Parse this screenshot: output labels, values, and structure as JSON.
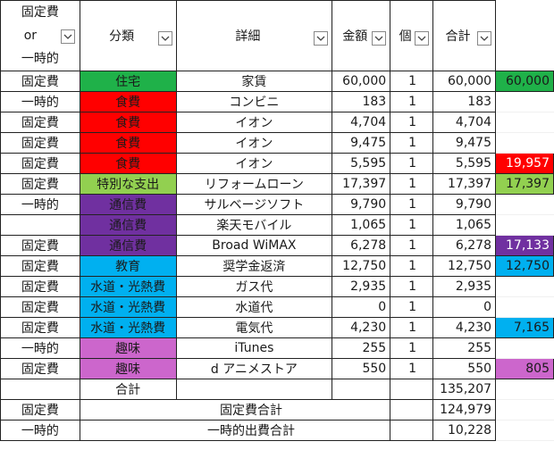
{
  "headers": {
    "type_top": "固定費",
    "type_mid": "or",
    "type_bot": "一時的",
    "category": "分類",
    "detail": "詳細",
    "amount": "金額",
    "qty": "個",
    "total": "合計"
  },
  "colors": {
    "housing": "#1fb149",
    "food": "#ff0000",
    "special": "#92d050",
    "telecom": "#7030a0",
    "education": "#00b0f0",
    "utilities": "#00b0f0",
    "hobby": "#cc66cc"
  },
  "rows": [
    {
      "type": "固定費",
      "category": "住宅",
      "cat_color": "#1fb149",
      "detail": "家賃",
      "amount": "60,000",
      "qty": "1",
      "total": "60,000",
      "side": "60,000",
      "side_color": "#1fb149"
    },
    {
      "type": "一時的",
      "category": "食費",
      "cat_color": "#ff0000",
      "detail": "コンビニ",
      "amount": "183",
      "qty": "1",
      "total": "183",
      "side": "",
      "side_color": ""
    },
    {
      "type": "固定費",
      "category": "食費",
      "cat_color": "#ff0000",
      "detail": "イオン",
      "amount": "4,704",
      "qty": "1",
      "total": "4,704",
      "side": "",
      "side_color": ""
    },
    {
      "type": "固定費",
      "category": "食費",
      "cat_color": "#ff0000",
      "detail": "イオン",
      "amount": "9,475",
      "qty": "1",
      "total": "9,475",
      "side": "",
      "side_color": ""
    },
    {
      "type": "固定費",
      "category": "食費",
      "cat_color": "#ff0000",
      "detail": "イオン",
      "amount": "5,595",
      "qty": "1",
      "total": "5,595",
      "side": "19,957",
      "side_color": "#ff0000"
    },
    {
      "type": "固定費",
      "category": "特別な支出",
      "cat_color": "#92d050",
      "detail": "リフォームローン",
      "amount": "17,397",
      "qty": "1",
      "total": "17,397",
      "side": "17,397",
      "side_color": "#92d050"
    },
    {
      "type": "一時的",
      "category": "通信費",
      "cat_color": "#7030a0",
      "detail": "サルベージソフト",
      "amount": "9,790",
      "qty": "1",
      "total": "9,790",
      "side": "",
      "side_color": ""
    },
    {
      "type": "",
      "category": "通信費",
      "cat_color": "#7030a0",
      "detail": "楽天モバイル",
      "amount": "1,065",
      "qty": "1",
      "total": "1,065",
      "side": "",
      "side_color": ""
    },
    {
      "type": "固定費",
      "category": "通信費",
      "cat_color": "#7030a0",
      "detail": "Broad WiMAX",
      "amount": "6,278",
      "qty": "1",
      "total": "6,278",
      "side": "17,133",
      "side_color": "#7030a0"
    },
    {
      "type": "固定費",
      "category": "教育",
      "cat_color": "#00b0f0",
      "detail": "奨学金返済",
      "amount": "12,750",
      "qty": "1",
      "total": "12,750",
      "side": "12,750",
      "side_color": "#00b0f0"
    },
    {
      "type": "固定費",
      "category": "水道・光熱費",
      "cat_color": "#00b0f0",
      "detail": "ガス代",
      "amount": "2,935",
      "qty": "1",
      "total": "2,935",
      "side": "",
      "side_color": ""
    },
    {
      "type": "固定費",
      "category": "水道・光熱費",
      "cat_color": "#00b0f0",
      "detail": "水道代",
      "amount": "0",
      "qty": "1",
      "total": "0",
      "side": "",
      "side_color": ""
    },
    {
      "type": "固定費",
      "category": "水道・光熱費",
      "cat_color": "#00b0f0",
      "detail": "電気代",
      "amount": "4,230",
      "qty": "1",
      "total": "4,230",
      "side": "7,165",
      "side_color": "#00b0f0"
    },
    {
      "type": "一時的",
      "category": "趣味",
      "cat_color": "#cc66cc",
      "detail": "iTunes",
      "amount": "255",
      "qty": "1",
      "total": "255",
      "side": "",
      "side_color": ""
    },
    {
      "type": "固定費",
      "category": "趣味",
      "cat_color": "#cc66cc",
      "detail": "d アニメストア",
      "amount": "550",
      "qty": "1",
      "total": "550",
      "side": "805",
      "side_color": "#cc66cc"
    }
  ],
  "summary": {
    "grand_label": "合計",
    "grand_total": "135,207",
    "fixed_type": "固定費",
    "fixed_label": "固定費合計",
    "fixed_total": "124,979",
    "temp_type": "一時的",
    "temp_label": "一時的出費合計",
    "temp_total": "10,228"
  }
}
